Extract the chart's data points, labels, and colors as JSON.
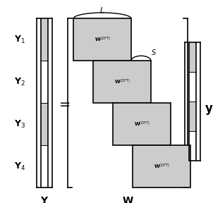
{
  "fig_width": 3.02,
  "fig_height": 2.88,
  "dpi": 100,
  "bg_color": "#ffffff",
  "gray_fill": "#cccccc",
  "white_fill": "#ffffff",
  "bracket_color": "#000000",
  "label_Y": "\\mathbf{Y}",
  "label_W": "\\mathbf{W}",
  "label_y": "\\mathbf{y}",
  "label_L": "L",
  "label_S": "S",
  "row_labels": [
    "\\mathbf{Y}_1",
    "\\mathbf{Y}_2",
    "\\mathbf{Y}_3",
    "\\mathbf{Y}_4"
  ],
  "dft_label": "\\mathbf{W}^{(DFT)}"
}
